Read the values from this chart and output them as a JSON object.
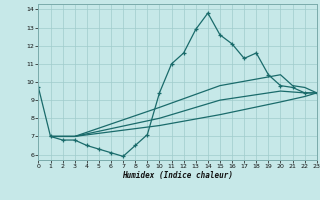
{
  "xlabel": "Humidex (Indice chaleur)",
  "bg_color": "#c6e8e8",
  "grid_color": "#a0cccc",
  "line_color": "#1a6b6b",
  "xlim": [
    0,
    23
  ],
  "ylim": [
    5.7,
    14.3
  ],
  "yticks": [
    6,
    7,
    8,
    9,
    10,
    11,
    12,
    13,
    14
  ],
  "xticks": [
    0,
    1,
    2,
    3,
    4,
    5,
    6,
    7,
    8,
    9,
    10,
    11,
    12,
    13,
    14,
    15,
    16,
    17,
    18,
    19,
    20,
    21,
    22,
    23
  ],
  "line1_x": [
    0,
    1,
    2,
    3,
    4,
    5,
    6,
    7,
    8,
    9,
    10,
    11,
    12,
    13,
    14,
    15,
    16,
    17,
    18,
    19,
    20,
    21,
    22,
    23
  ],
  "line1_y": [
    9.7,
    7.0,
    6.8,
    6.8,
    6.5,
    6.3,
    6.1,
    5.9,
    6.5,
    7.1,
    9.4,
    11.0,
    11.6,
    12.9,
    13.8,
    12.6,
    12.1,
    11.3,
    11.6,
    10.4,
    9.8,
    9.7,
    9.4,
    9.4
  ],
  "line2_x": [
    1,
    3,
    10,
    15,
    20,
    21,
    22,
    23
  ],
  "line2_y": [
    7.0,
    7.0,
    8.6,
    9.8,
    10.4,
    9.8,
    9.7,
    9.4
  ],
  "line3_x": [
    1,
    3,
    10,
    15,
    20,
    22,
    23
  ],
  "line3_y": [
    7.0,
    7.0,
    8.0,
    9.0,
    9.5,
    9.4,
    9.4
  ],
  "line4_x": [
    1,
    3,
    10,
    15,
    20,
    22,
    23
  ],
  "line4_y": [
    7.0,
    7.0,
    7.6,
    8.2,
    8.9,
    9.2,
    9.4
  ]
}
